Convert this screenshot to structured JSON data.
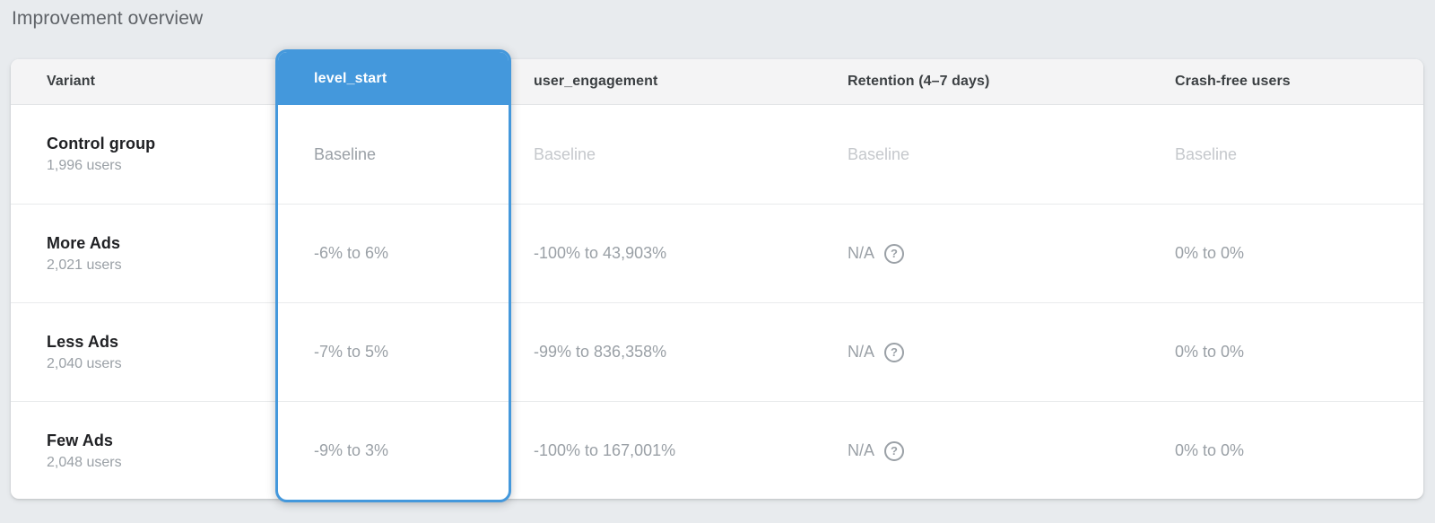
{
  "page": {
    "title": "Improvement overview"
  },
  "colors": {
    "accent_blue": "#4498dc",
    "page_background": "#e8ebee",
    "header_row_background": "#f4f4f5",
    "primary_text": "#202124",
    "muted_text": "#9aa0a6",
    "baseline_text": "#c5c8cc"
  },
  "icons": {
    "help": "?"
  },
  "table": {
    "columns": [
      {
        "id": "variant",
        "label": "Variant",
        "selected": false
      },
      {
        "id": "level_start",
        "label": "level_start",
        "selected": true
      },
      {
        "id": "user_engagement",
        "label": "user_engagement",
        "selected": false
      },
      {
        "id": "retention",
        "label": "Retention (4–7 days)",
        "selected": false
      },
      {
        "id": "crash_free",
        "label": "Crash-free users",
        "selected": false
      }
    ],
    "rows": [
      {
        "variant": "Control group",
        "users": "1,996 users",
        "level_start": "Baseline",
        "user_engagement": "Baseline",
        "retention": "Baseline",
        "retention_has_help": false,
        "crash_free": "Baseline",
        "is_baseline": true
      },
      {
        "variant": "More Ads",
        "users": "2,021 users",
        "level_start": "-6% to 6%",
        "user_engagement": "-100% to 43,903%",
        "retention": "N/A",
        "retention_has_help": true,
        "crash_free": "0% to 0%",
        "is_baseline": false
      },
      {
        "variant": "Less Ads",
        "users": "2,040 users",
        "level_start": "-7% to 5%",
        "user_engagement": "-99% to 836,358%",
        "retention": "N/A",
        "retention_has_help": true,
        "crash_free": "0% to 0%",
        "is_baseline": false
      },
      {
        "variant": "Few Ads",
        "users": "2,048 users",
        "level_start": "-9% to 3%",
        "user_engagement": "-100% to 167,001%",
        "retention": "N/A",
        "retention_has_help": true,
        "crash_free": "0% to 0%",
        "is_baseline": false
      }
    ]
  }
}
